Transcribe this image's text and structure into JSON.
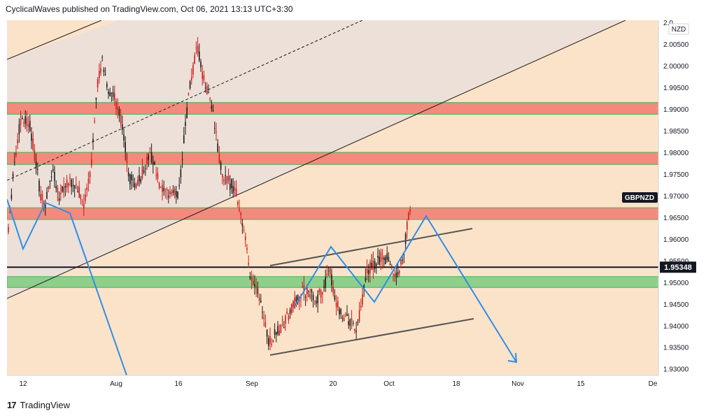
{
  "header": {
    "publisher": "CyclicalWaves published on TradingView.com, Oct 06, 2021 13:13 UTC+3:30"
  },
  "footer": {
    "brand": "TradingView",
    "logo_glyph": "17"
  },
  "chart_data": {
    "type": "candlestick",
    "symbol_label": "GBPNZD",
    "currency_label": "NZD",
    "current_price": "1.95348",
    "y_range": [
      1.9285,
      2.0105
    ],
    "y_ticks": [
      "2.00500",
      "2.00000",
      "1.99500",
      "1.99000",
      "1.98500",
      "1.98000",
      "1.97500",
      "1.97000",
      "1.96500",
      "1.96000",
      "1.95500",
      "1.95000",
      "1.94500",
      "1.94000",
      "1.93500",
      "1.93000"
    ],
    "y_tick_top_partial": "2.0",
    "x_ticks": [
      "12",
      "Aug",
      "16",
      "Sep",
      "20",
      "Oct",
      "18",
      "Nov",
      "15",
      "De"
    ],
    "resistance_zones": [
      {
        "from": 1.9888,
        "to": 1.9915
      },
      {
        "from": 1.9772,
        "to": 1.98
      },
      {
        "from": 1.9645,
        "to": 1.9672
      }
    ],
    "support_zone": {
      "from": 1.9488,
      "to": 1.9513
    },
    "horizontal_line": 1.95348,
    "colors": {
      "background": "#fbe3c9",
      "channel_fill": "#ece0d8",
      "resistance": "#f28b7d",
      "support": "#8ecf8c",
      "zone_border": "#4caf50",
      "wave": "#2d8ee8",
      "candle_up": "#1a1a1a",
      "candle_down": "#d11a1a",
      "current_price_bg": "#131722"
    }
  }
}
